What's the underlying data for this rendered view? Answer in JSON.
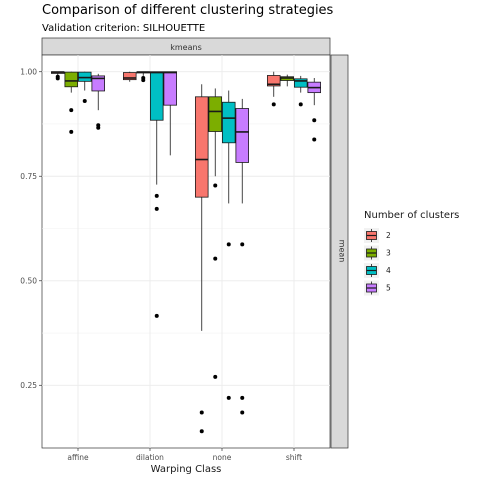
{
  "chart_data": {
    "type": "boxplot",
    "title": "Comparison of different clustering strategies",
    "subtitle": "Validation criterion: SILHOUETTE",
    "facet_top": "kmeans",
    "facet_right": "mean",
    "xlabel": "Warping Class",
    "ylabel": "",
    "ylim": [
      0.1,
      1.04
    ],
    "y_ticks": [
      0.25,
      0.5,
      0.75,
      1.0
    ],
    "y_tick_labels": [
      "0.25",
      "0.50",
      "0.75",
      "1.00"
    ],
    "grid": true,
    "categories": [
      "affine",
      "dilation",
      "none",
      "shift"
    ],
    "legend": {
      "title": "Number of clusters",
      "position": "right",
      "entries": [
        "2",
        "3",
        "4",
        "5"
      ]
    },
    "series": [
      {
        "name": "2",
        "color": "#F8766D",
        "boxes": [
          {
            "category": "affine",
            "min": 0.99,
            "q1": 0.996,
            "median": 0.999,
            "q3": 1.0,
            "max": 1.0,
            "outliers": [
              0.984,
              0.988
            ]
          },
          {
            "category": "dilation",
            "min": 0.976,
            "q1": 0.981,
            "median": 0.985,
            "q3": 0.998,
            "max": 1.0,
            "outliers": []
          },
          {
            "category": "none",
            "min": 0.38,
            "q1": 0.7,
            "median": 0.79,
            "q3": 0.94,
            "max": 0.97,
            "outliers": [
              0.185,
              0.14
            ]
          },
          {
            "category": "shift",
            "min": 0.94,
            "q1": 0.966,
            "median": 0.97,
            "q3": 0.991,
            "max": 1.0,
            "outliers": [
              0.922
            ]
          }
        ]
      },
      {
        "name": "3",
        "color": "#7CAE00",
        "boxes": [
          {
            "category": "affine",
            "min": 0.95,
            "q1": 0.964,
            "median": 0.978,
            "q3": 0.999,
            "max": 1.0,
            "outliers": [
              0.908,
              0.856
            ]
          },
          {
            "category": "dilation",
            "min": 0.99,
            "q1": 0.997,
            "median": 0.999,
            "q3": 1.0,
            "max": 1.0,
            "outliers": [
              0.985,
              0.98
            ]
          },
          {
            "category": "none",
            "min": 0.75,
            "q1": 0.857,
            "median": 0.905,
            "q3": 0.94,
            "max": 0.96,
            "outliers": [
              0.728,
              0.553,
              0.27
            ]
          },
          {
            "category": "shift",
            "min": 0.965,
            "q1": 0.979,
            "median": 0.985,
            "q3": 0.988,
            "max": 0.993,
            "outliers": []
          }
        ]
      },
      {
        "name": "4",
        "color": "#00BFC4",
        "boxes": [
          {
            "category": "affine",
            "min": 0.955,
            "q1": 0.977,
            "median": 0.986,
            "q3": 0.999,
            "max": 1.0,
            "outliers": [
              0.93
            ]
          },
          {
            "category": "dilation",
            "min": 0.73,
            "q1": 0.884,
            "median": 0.998,
            "q3": 1.0,
            "max": 1.0,
            "outliers": [
              0.703,
              0.672,
              0.416
            ]
          },
          {
            "category": "none",
            "min": 0.685,
            "q1": 0.83,
            "median": 0.889,
            "q3": 0.927,
            "max": 0.955,
            "outliers": [
              0.587,
              0.22
            ]
          },
          {
            "category": "shift",
            "min": 0.95,
            "q1": 0.963,
            "median": 0.978,
            "q3": 0.983,
            "max": 0.99,
            "outliers": [
              0.922
            ]
          }
        ]
      },
      {
        "name": "5",
        "color": "#C77CFF",
        "boxes": [
          {
            "category": "affine",
            "min": 0.908,
            "q1": 0.954,
            "median": 0.984,
            "q3": 0.99,
            "max": 0.995,
            "outliers": [
              0.872,
              0.866
            ]
          },
          {
            "category": "dilation",
            "min": 0.8,
            "q1": 0.92,
            "median": 0.998,
            "q3": 1.0,
            "max": 1.0,
            "outliers": []
          },
          {
            "category": "none",
            "min": 0.685,
            "q1": 0.783,
            "median": 0.856,
            "q3": 0.912,
            "max": 0.935,
            "outliers": [
              0.587,
              0.22,
              0.185
            ]
          },
          {
            "category": "shift",
            "min": 0.92,
            "q1": 0.95,
            "median": 0.962,
            "q3": 0.975,
            "max": 0.985,
            "outliers": [
              0.884,
              0.838
            ]
          }
        ]
      }
    ]
  }
}
